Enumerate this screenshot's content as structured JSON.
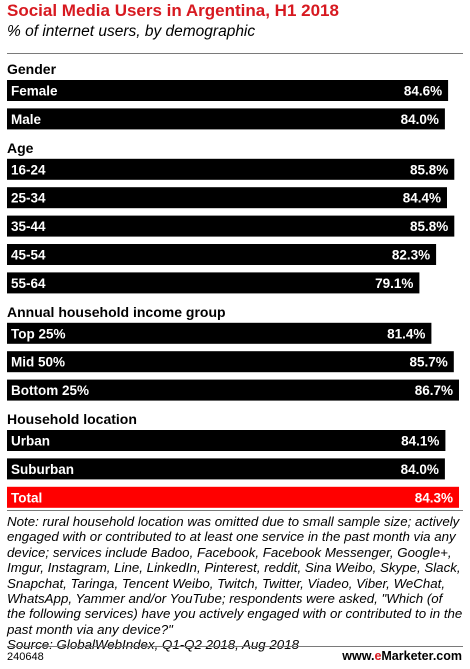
{
  "header": {
    "title": "Social Media Users in Argentina, H1 2018",
    "subtitle": "% of internet users, by demographic"
  },
  "colors": {
    "bar": "#000000",
    "highlight": "#ff0000",
    "text_on_bar": "#ffffff",
    "title": "#d71920"
  },
  "chart_data": {
    "type": "bar",
    "orientation": "horizontal",
    "xlim": [
      0,
      86.7
    ],
    "value_suffix": "%",
    "groups": [
      {
        "heading": "Gender",
        "items": [
          {
            "label": "Female",
            "value": 84.6,
            "display": "84.6%"
          },
          {
            "label": "Male",
            "value": 84.0,
            "display": "84.0%"
          }
        ]
      },
      {
        "heading": "Age",
        "items": [
          {
            "label": "16-24",
            "value": 85.8,
            "display": "85.8%"
          },
          {
            "label": "25-34",
            "value": 84.4,
            "display": "84.4%"
          },
          {
            "label": "35-44",
            "value": 85.8,
            "display": "85.8%"
          },
          {
            "label": "45-54",
            "value": 82.3,
            "display": "82.3%"
          },
          {
            "label": "55-64",
            "value": 79.1,
            "display": "79.1%"
          }
        ]
      },
      {
        "heading": "Annual household income group",
        "items": [
          {
            "label": "Top 25%",
            "value": 81.4,
            "display": "81.4%"
          },
          {
            "label": "Mid 50%",
            "value": 85.7,
            "display": "85.7%"
          },
          {
            "label": "Bottom 25%",
            "value": 86.7,
            "display": "86.7%"
          }
        ]
      },
      {
        "heading": "Household location",
        "items": [
          {
            "label": "Urban",
            "value": 84.1,
            "display": "84.1%"
          },
          {
            "label": "Suburban",
            "value": 84.0,
            "display": "84.0%"
          },
          {
            "label": "Total",
            "value": 84.3,
            "display": "84.3%",
            "highlight": true
          }
        ]
      }
    ]
  },
  "note": "Note: rural household location was omitted due to small sample size; actively engaged with or contributed to at least one service in the past month via any device; services include Badoo, Facebook, Facebook Messenger, Google+, Imgur, Instagram, Line, LinkedIn, Pinterest, reddit, Sina Weibo, Skype, Slack, Snapchat, Taringa, Tencent Weibo, Twitch, Twitter, Viadeo, Viber, WeChat, WhatsApp, Yammer and/or YouTube; respondents were asked, \"Which (of the following services) have you actively engaged with or contributed to in the past month via any device?\"",
  "source": "Source: GlobalWebIndex, Q1-Q2 2018, Aug 2018",
  "footer": {
    "chart_id": "240648",
    "brand_prefix": "www.",
    "brand_e": "e",
    "brand_rest": "Marketer.com"
  }
}
